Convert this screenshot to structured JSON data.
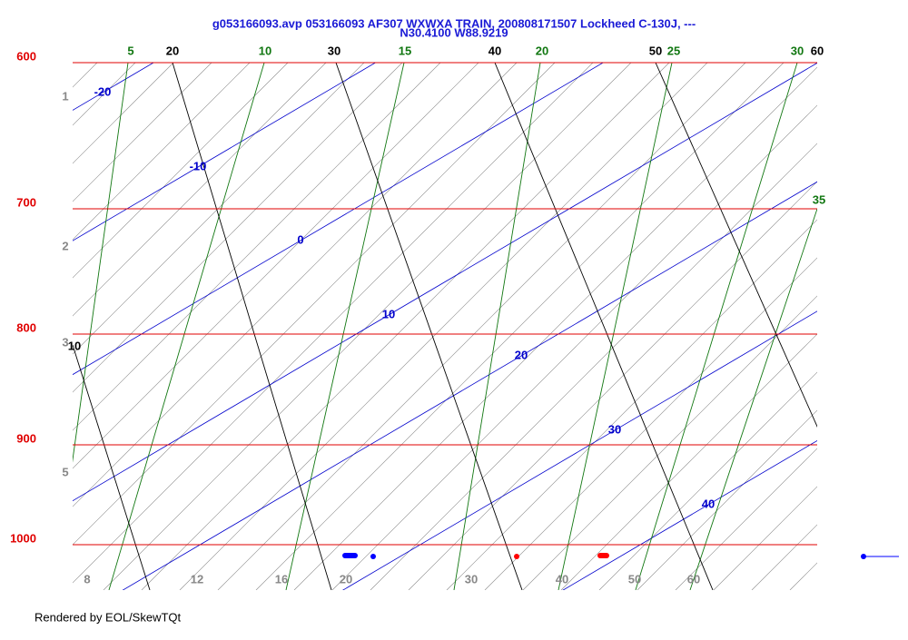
{
  "header": {
    "title": "g053166093.avp 053166093 AF307 WXWXA TRAIN, 200808171507 Lockheed C-130J, ---",
    "subtitle": "N30.4100 W88.9219"
  },
  "pressure_labels": [
    "600",
    "700",
    "800",
    "900",
    "1000"
  ],
  "top_black_labels": [
    "20",
    "30",
    "40",
    "50",
    "60"
  ],
  "left_black_label": "10",
  "green_labels": [
    "5",
    "10",
    "15",
    "20",
    "25",
    "30",
    "35"
  ],
  "blue_labels": [
    "-20",
    "-10",
    "0",
    "10",
    "20",
    "30",
    "40"
  ],
  "left_gray_labels": [
    "1",
    "2",
    "3",
    "5"
  ],
  "bottom_gray_labels": [
    "8",
    "12",
    "16",
    "20",
    "30",
    "40",
    "50",
    "60"
  ],
  "footer": "Rendered by EOL/SkewTQt"
}
